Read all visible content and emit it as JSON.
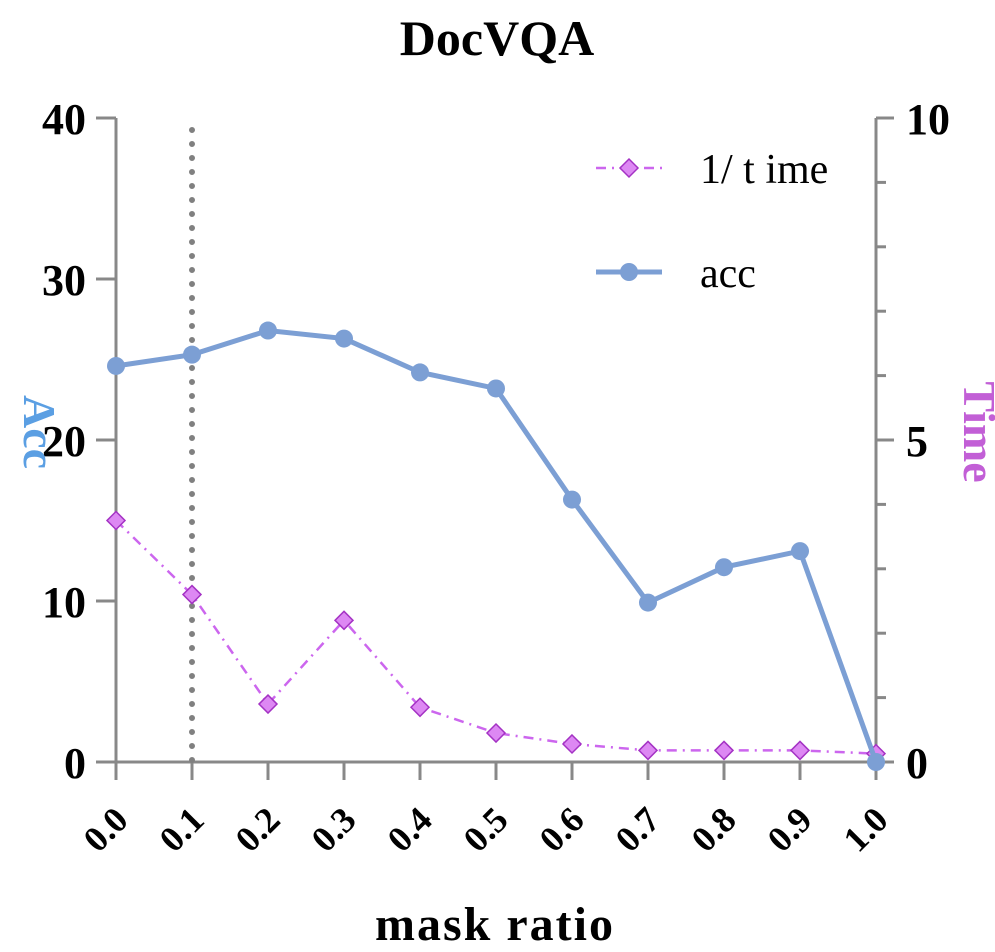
{
  "chart_data": {
    "type": "line",
    "title": "DocVQA",
    "xlabel": "mask ratio",
    "ylabel_left": "Acc",
    "ylabel_right": "Time",
    "x": [
      0.0,
      0.1,
      0.2,
      0.3,
      0.4,
      0.5,
      0.6,
      0.7,
      0.8,
      0.9,
      1.0
    ],
    "x_tick_labels": [
      "0.0",
      "0.1",
      "0.2",
      "0.3",
      "0.4",
      "0.5",
      "0.6",
      "0.7",
      "0.8",
      "0.9",
      "1.0"
    ],
    "xlim": [
      0.0,
      1.0
    ],
    "ylim_left": [
      0,
      40
    ],
    "ylim_right": [
      0,
      10
    ],
    "y_ticks_left": [
      "0",
      "10",
      "20",
      "30",
      "40"
    ],
    "y_ticks_right": [
      "0",
      "5",
      "10"
    ],
    "vertical_reference_x": 0.1,
    "legend_position": "top-right",
    "series": [
      {
        "name": "1/ t ime",
        "axis": "right",
        "color": "#cc66ee",
        "marker": "diamond",
        "line_style": "dash-dot",
        "values": [
          3.75,
          2.6,
          0.9,
          2.2,
          0.85,
          0.45,
          0.28,
          0.18,
          0.18,
          0.18,
          0.13
        ]
      },
      {
        "name": "acc",
        "axis": "left",
        "color": "#7c9fd4",
        "marker": "circle",
        "line_style": "solid",
        "values": [
          24.6,
          25.3,
          26.8,
          26.3,
          24.2,
          23.2,
          16.3,
          9.9,
          12.1,
          13.1,
          0.0
        ]
      }
    ],
    "colors": {
      "axis": "#888888",
      "left_label": "#5b9fe3",
      "right_label": "#c25fd6",
      "reference_line": "#808080"
    }
  }
}
